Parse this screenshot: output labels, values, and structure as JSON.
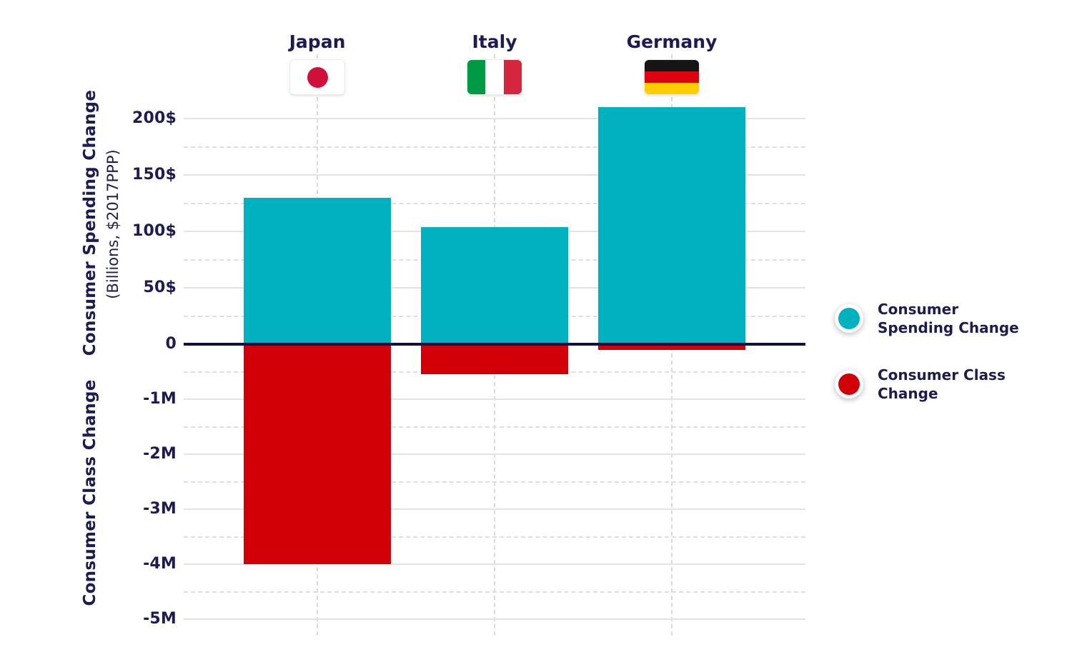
{
  "chart_data": {
    "type": "bar",
    "title": "",
    "categories": [
      "Japan",
      "Italy",
      "Germany"
    ],
    "series": [
      {
        "name": "Consumer Spending Change",
        "axis": "top",
        "values": [
          130,
          104,
          210
        ],
        "color": "#00b2bf"
      },
      {
        "name": "Consumer Class Change",
        "axis": "bottom",
        "values": [
          -4.0,
          -0.55,
          -0.1
        ],
        "color": "#d10008"
      }
    ],
    "top_axis": {
      "title": "Consumer Spending Change",
      "subtitle": "(Billions, $2017PPP)",
      "range": [
        0,
        216
      ],
      "ticks": [
        {
          "value": 200,
          "label": "200$"
        },
        {
          "value": 150,
          "label": "150$"
        },
        {
          "value": 100,
          "label": "100$"
        },
        {
          "value": 50,
          "label": "50$"
        }
      ],
      "minor_ticks": [
        175,
        125,
        75,
        25
      ]
    },
    "bottom_axis": {
      "title": "Consumer Class Change",
      "range": [
        -5.3,
        0
      ],
      "ticks": [
        {
          "value": -1,
          "label": "-1M"
        },
        {
          "value": -2,
          "label": "-2M"
        },
        {
          "value": -3,
          "label": "-3M"
        },
        {
          "value": -4,
          "label": "-4M"
        },
        {
          "value": -5,
          "label": "-5M"
        }
      ],
      "minor_ticks": [
        -0.5,
        -1.5,
        -2.5,
        -3.5,
        -4.5
      ]
    },
    "zero_tick_label": "0",
    "grid": true,
    "legend_position": "right"
  },
  "country_headers": [
    {
      "label": "Japan",
      "flag": "japan"
    },
    {
      "label": "Italy",
      "flag": "italy"
    },
    {
      "label": "Germany",
      "flag": "germany"
    }
  ],
  "flags": {
    "japan": {
      "type": "disc",
      "field": "#ffffff",
      "disc": "#d0103a"
    },
    "italy": {
      "type": "vertical-stripes",
      "stripes": [
        "#009a44",
        "#ffffff",
        "#d4273e"
      ]
    },
    "germany": {
      "type": "horizontal-stripes",
      "stripes": [
        "#151515",
        "#e1000f",
        "#ffce00"
      ]
    }
  },
  "legend": {
    "items": [
      {
        "lines": [
          "Consumer",
          "Spending Change"
        ],
        "color": "#00b2bf"
      },
      {
        "lines": [
          "Consumer Class",
          "Change"
        ],
        "color": "#d10008"
      }
    ]
  },
  "colors": {
    "teal": "#00b2bf",
    "red": "#d10008",
    "text_navy": "#1c1c52",
    "zero_line": "#101044",
    "grid_major": "#e3e3e3",
    "grid_minor": "#dedede"
  }
}
